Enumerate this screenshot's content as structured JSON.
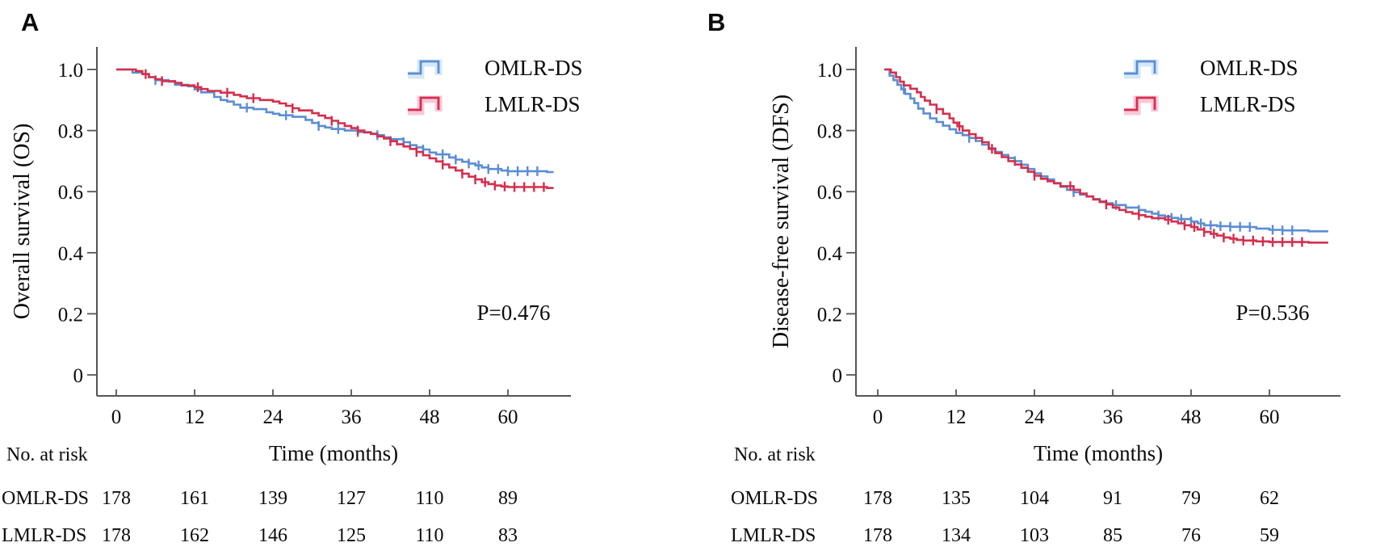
{
  "chart_data": [
    {
      "type": "line",
      "subtype": "kaplan-meier-step",
      "panel_letter": "A",
      "ylabel": "Overall survival (OS)",
      "xlabel": "Time (months)",
      "p_value_label": "P=0.476",
      "x_ticks": [
        0,
        12,
        24,
        36,
        48,
        60
      ],
      "y_tick_labels": [
        "1.0",
        "0.8",
        "0.6",
        "0.4",
        "0.2",
        "0"
      ],
      "xlim": [
        0,
        67
      ],
      "ylim": [
        0,
        1.0
      ],
      "grid": false,
      "legend_position": "top-right",
      "axis_color": "#555555",
      "series": [
        {
          "name": "OMLR-DS",
          "color": "#5b8dd3",
          "glow": "#bedcf2",
          "steps": [
            [
              0,
              1.0
            ],
            [
              2.5,
              0.99
            ],
            [
              4,
              0.985
            ],
            [
              5,
              0.975
            ],
            [
              6,
              0.965
            ],
            [
              8,
              0.96
            ],
            [
              9,
              0.95
            ],
            [
              11,
              0.945
            ],
            [
              12,
              0.935
            ],
            [
              13,
              0.925
            ],
            [
              15,
              0.91
            ],
            [
              16,
              0.9
            ],
            [
              17,
              0.895
            ],
            [
              18,
              0.885
            ],
            [
              19,
              0.875
            ],
            [
              21,
              0.87
            ],
            [
              23,
              0.86
            ],
            [
              24,
              0.855
            ],
            [
              25,
              0.85
            ],
            [
              27,
              0.845
            ],
            [
              29,
              0.835
            ],
            [
              30,
              0.825
            ],
            [
              31,
              0.815
            ],
            [
              32,
              0.81
            ],
            [
              33,
              0.805
            ],
            [
              35,
              0.8
            ],
            [
              37,
              0.795
            ],
            [
              39,
              0.79
            ],
            [
              40,
              0.785
            ],
            [
              41,
              0.778
            ],
            [
              42,
              0.772
            ],
            [
              44,
              0.762
            ],
            [
              45,
              0.752
            ],
            [
              46,
              0.745
            ],
            [
              47,
              0.738
            ],
            [
              48,
              0.728
            ],
            [
              49,
              0.722
            ],
            [
              51,
              0.712
            ],
            [
              52,
              0.705
            ],
            [
              53,
              0.698
            ],
            [
              54,
              0.692
            ],
            [
              55,
              0.686
            ],
            [
              56,
              0.679
            ],
            [
              57,
              0.674
            ],
            [
              59,
              0.669
            ],
            [
              60,
              0.667
            ],
            [
              66,
              0.664
            ]
          ],
          "censor_months": [
            6,
            20,
            26,
            31,
            34,
            37,
            40,
            44,
            47,
            50,
            52,
            54,
            55.5,
            57,
            58.5,
            60,
            61.5,
            63,
            64.5
          ]
        },
        {
          "name": "LMLR-DS",
          "color": "#d62e4c",
          "glow": "#f4a9c4",
          "steps": [
            [
              0,
              1.0
            ],
            [
              3,
              0.995
            ],
            [
              4,
              0.985
            ],
            [
              5,
              0.975
            ],
            [
              6,
              0.968
            ],
            [
              7,
              0.962
            ],
            [
              9,
              0.956
            ],
            [
              10,
              0.948
            ],
            [
              12,
              0.942
            ],
            [
              13,
              0.936
            ],
            [
              14,
              0.93
            ],
            [
              16,
              0.924
            ],
            [
              18,
              0.917
            ],
            [
              19,
              0.912
            ],
            [
              20,
              0.906
            ],
            [
              22,
              0.9
            ],
            [
              24,
              0.895
            ],
            [
              25,
              0.889
            ],
            [
              26,
              0.881
            ],
            [
              27,
              0.873
            ],
            [
              28,
              0.866
            ],
            [
              30,
              0.857
            ],
            [
              31,
              0.849
            ],
            [
              32,
              0.841
            ],
            [
              33,
              0.832
            ],
            [
              34,
              0.824
            ],
            [
              35,
              0.815
            ],
            [
              36,
              0.808
            ],
            [
              37,
              0.8
            ],
            [
              38,
              0.794
            ],
            [
              39,
              0.789
            ],
            [
              40,
              0.781
            ],
            [
              41,
              0.774
            ],
            [
              42,
              0.765
            ],
            [
              43,
              0.755
            ],
            [
              44,
              0.748
            ],
            [
              45,
              0.74
            ],
            [
              46,
              0.73
            ],
            [
              47,
              0.719
            ],
            [
              48,
              0.709
            ],
            [
              49,
              0.699
            ],
            [
              50,
              0.689
            ],
            [
              51,
              0.679
            ],
            [
              52,
              0.669
            ],
            [
              53,
              0.659
            ],
            [
              54,
              0.649
            ],
            [
              55,
              0.64
            ],
            [
              56,
              0.631
            ],
            [
              57,
              0.625
            ],
            [
              58,
              0.62
            ],
            [
              59,
              0.617
            ],
            [
              60,
              0.615
            ],
            [
              66,
              0.612
            ]
          ],
          "censor_months": [
            4.5,
            7,
            12.5,
            17,
            21,
            27,
            33,
            37,
            42,
            46,
            50,
            53,
            55,
            56.5,
            58,
            59.5,
            61,
            62.5,
            64,
            65.5
          ]
        }
      ],
      "risk_table": {
        "header": "No. at risk",
        "rows": [
          {
            "label": "OMLR-DS",
            "values": [
              178,
              161,
              139,
              127,
              110,
              89
            ]
          },
          {
            "label": "LMLR-DS",
            "values": [
              178,
              162,
              146,
              125,
              110,
              83
            ]
          }
        ]
      }
    },
    {
      "type": "line",
      "subtype": "kaplan-meier-step",
      "panel_letter": "B",
      "ylabel": "Disease-free survival (DFS)",
      "xlabel": "Time (months)",
      "p_value_label": "P=0.536",
      "x_ticks": [
        0,
        12,
        24,
        36,
        48,
        60
      ],
      "y_tick_labels": [
        "1.0",
        "0.8",
        "0.6",
        "0.4",
        "0.2",
        "0"
      ],
      "xlim": [
        0,
        69
      ],
      "ylim": [
        0,
        1.0
      ],
      "grid": false,
      "legend_position": "top-right",
      "axis_color": "#555555",
      "series": [
        {
          "name": "OMLR-DS",
          "color": "#5b8dd3",
          "glow": "#bedcf2",
          "steps": [
            [
              1,
              1.0
            ],
            [
              1.8,
              0.98
            ],
            [
              2.4,
              0.965
            ],
            [
              3,
              0.95
            ],
            [
              3.6,
              0.935
            ],
            [
              4.2,
              0.92
            ],
            [
              5,
              0.905
            ],
            [
              5.6,
              0.89
            ],
            [
              6.2,
              0.872
            ],
            [
              7,
              0.856
            ],
            [
              8,
              0.84
            ],
            [
              9,
              0.828
            ],
            [
              10,
              0.816
            ],
            [
              11,
              0.804
            ],
            [
              12,
              0.792
            ],
            [
              13,
              0.785
            ],
            [
              14,
              0.776
            ],
            [
              15,
              0.766
            ],
            [
              16,
              0.754
            ],
            [
              17,
              0.742
            ],
            [
              18,
              0.73
            ],
            [
              19,
              0.72
            ],
            [
              20,
              0.71
            ],
            [
              21,
              0.7
            ],
            [
              22,
              0.688
            ],
            [
              23,
              0.674
            ],
            [
              24,
              0.66
            ],
            [
              25,
              0.65
            ],
            [
              26,
              0.64
            ],
            [
              27,
              0.628
            ],
            [
              28,
              0.616
            ],
            [
              29,
              0.606
            ],
            [
              30,
              0.598
            ],
            [
              31,
              0.59
            ],
            [
              32,
              0.584
            ],
            [
              33,
              0.576
            ],
            [
              34,
              0.568
            ],
            [
              35,
              0.562
            ],
            [
              36,
              0.556
            ],
            [
              38,
              0.548
            ],
            [
              40,
              0.54
            ],
            [
              41,
              0.534
            ],
            [
              42,
              0.528
            ],
            [
              43,
              0.522
            ],
            [
              44,
              0.518
            ],
            [
              45,
              0.514
            ],
            [
              46,
              0.51
            ],
            [
              48,
              0.502
            ],
            [
              49,
              0.496
            ],
            [
              50,
              0.49
            ],
            [
              52,
              0.487
            ],
            [
              54,
              0.485
            ],
            [
              57,
              0.484
            ],
            [
              58,
              0.479
            ],
            [
              60,
              0.475
            ],
            [
              62,
              0.473
            ],
            [
              66,
              0.47
            ]
          ],
          "censor_months": [
            4,
            14,
            21,
            30,
            36.5,
            40,
            43,
            45,
            46.5,
            48,
            49.5,
            51,
            52.5,
            54,
            55.5,
            57,
            60.5,
            62,
            63.5
          ]
        },
        {
          "name": "LMLR-DS",
          "color": "#d62e4c",
          "glow": "#f4a9c4",
          "steps": [
            [
              1,
              1.0
            ],
            [
              2,
              0.99
            ],
            [
              2.8,
              0.975
            ],
            [
              3.4,
              0.96
            ],
            [
              4,
              0.948
            ],
            [
              5,
              0.937
            ],
            [
              6,
              0.925
            ],
            [
              6.6,
              0.91
            ],
            [
              7.2,
              0.898
            ],
            [
              8,
              0.885
            ],
            [
              9,
              0.87
            ],
            [
              10,
              0.855
            ],
            [
              11,
              0.84
            ],
            [
              11.6,
              0.826
            ],
            [
              12.2,
              0.814
            ],
            [
              13,
              0.8
            ],
            [
              14,
              0.788
            ],
            [
              15,
              0.776
            ],
            [
              16,
              0.762
            ],
            [
              17,
              0.74
            ],
            [
              18,
              0.726
            ],
            [
              19,
              0.713
            ],
            [
              20,
              0.7
            ],
            [
              21,
              0.689
            ],
            [
              22,
              0.678
            ],
            [
              23,
              0.665
            ],
            [
              24,
              0.652
            ],
            [
              25,
              0.642
            ],
            [
              26,
              0.634
            ],
            [
              27,
              0.627
            ],
            [
              28,
              0.618
            ],
            [
              30,
              0.606
            ],
            [
              31,
              0.594
            ],
            [
              32,
              0.584
            ],
            [
              33,
              0.574
            ],
            [
              34,
              0.566
            ],
            [
              35,
              0.558
            ],
            [
              36,
              0.548
            ],
            [
              37,
              0.54
            ],
            [
              38,
              0.533
            ],
            [
              39,
              0.528
            ],
            [
              40,
              0.523
            ],
            [
              41,
              0.518
            ],
            [
              42,
              0.513
            ],
            [
              44,
              0.508
            ],
            [
              45,
              0.502
            ],
            [
              46,
              0.496
            ],
            [
              47,
              0.49
            ],
            [
              48,
              0.484
            ],
            [
              49,
              0.476
            ],
            [
              50,
              0.468
            ],
            [
              51,
              0.462
            ],
            [
              52,
              0.456
            ],
            [
              53,
              0.45
            ],
            [
              54,
              0.446
            ],
            [
              55,
              0.442
            ],
            [
              56,
              0.44
            ],
            [
              58,
              0.437
            ],
            [
              60,
              0.435
            ],
            [
              66,
              0.433
            ]
          ],
          "censor_months": [
            9,
            12.5,
            17.5,
            24,
            29.5,
            35,
            40,
            44.5,
            47,
            48.5,
            50,
            51.5,
            53,
            54.5,
            56,
            57.5,
            59,
            60.5,
            62,
            63.5,
            65
          ]
        }
      ],
      "risk_table": {
        "header": "No. at risk",
        "rows": [
          {
            "label": "OMLR-DS",
            "values": [
              178,
              135,
              104,
              91,
              79,
              62
            ]
          },
          {
            "label": "LMLR-DS",
            "values": [
              178,
              134,
              103,
              85,
              76,
              59
            ]
          }
        ]
      }
    }
  ]
}
